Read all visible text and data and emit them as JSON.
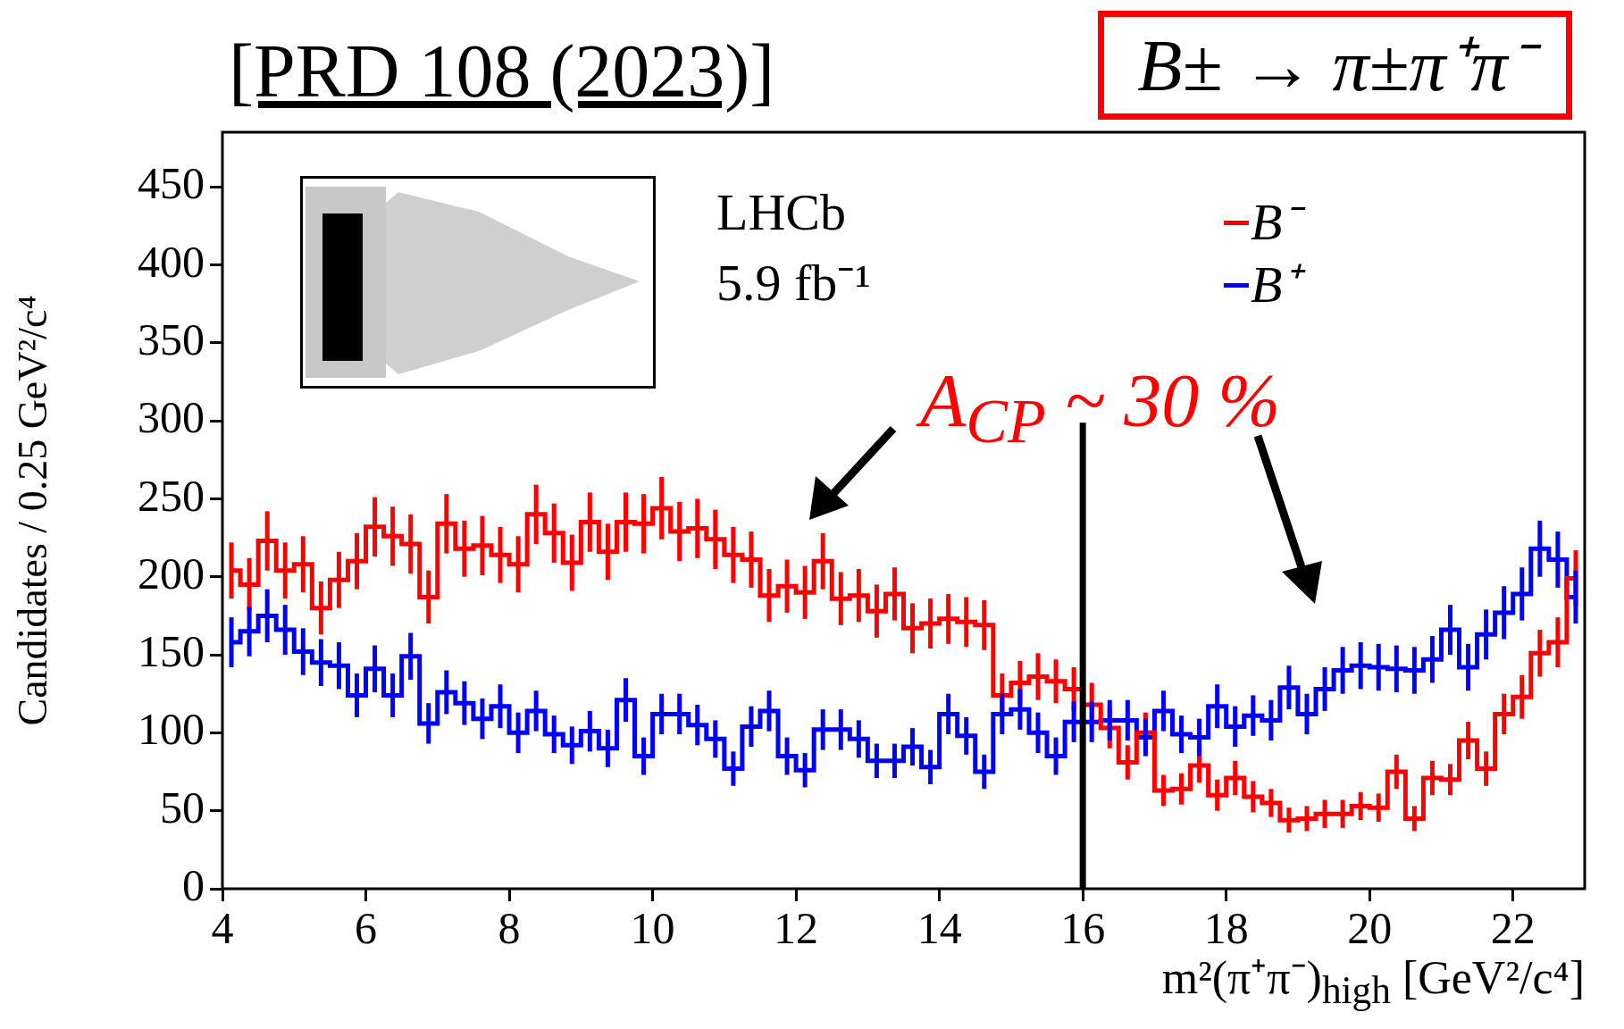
{
  "chart_data": {
    "type": "step",
    "title": "[PRD 108 (2023)]",
    "xlabel": "m²(π⁺π⁻)$_{high}$ [GeV²/c⁴]",
    "ylabel": "Candidates / 0.25 GeV²/c⁴",
    "x": [
      4.125,
      4.375,
      4.625,
      4.875,
      5.125,
      5.375,
      5.625,
      5.875,
      6.125,
      6.375,
      6.625,
      6.875,
      7.125,
      7.375,
      7.625,
      7.875,
      8.125,
      8.375,
      8.625,
      8.875,
      9.125,
      9.375,
      9.625,
      9.875,
      10.125,
      10.375,
      10.625,
      10.875,
      11.125,
      11.375,
      11.625,
      11.875,
      12.125,
      12.375,
      12.625,
      12.875,
      13.125,
      13.375,
      13.625,
      13.875,
      14.125,
      14.375,
      14.625,
      14.875,
      15.125,
      15.375,
      15.625,
      15.875,
      16.125,
      16.375,
      16.625,
      16.875,
      17.125,
      17.375,
      17.625,
      17.875,
      18.125,
      18.375,
      18.625,
      18.875,
      19.125,
      19.375,
      19.625,
      19.875,
      20.125,
      20.375,
      20.625,
      20.875,
      21.125,
      21.375,
      21.625,
      21.875,
      22.125,
      22.375,
      22.625,
      22.875
    ],
    "series": [
      {
        "name": "B⁻",
        "color": "#ff0000",
        "values": [
          204,
          195,
          223,
          204,
          208,
          180,
          198,
          210,
          232,
          226,
          221,
          187,
          234,
          218,
          220,
          214,
          208,
          240,
          228,
          209,
          235,
          216,
          235,
          234,
          244,
          229,
          231,
          224,
          214,
          211,
          188,
          194,
          190,
          210,
          186,
          188,
          178,
          189,
          167,
          170,
          173,
          171,
          169,
          124,
          132,
          136,
          133,
          128,
          118,
          103,
          81,
          100,
          63,
          64,
          79,
          60,
          71,
          59,
          55,
          44,
          45,
          48,
          48,
          53,
          52,
          75,
          45,
          71,
          70,
          95,
          77,
          112,
          123,
          151,
          158,
          199
        ],
        "errors": [
          18,
          17,
          19,
          18,
          18,
          17,
          18,
          18,
          19,
          19,
          19,
          17,
          19,
          18,
          19,
          18,
          18,
          19,
          19,
          18,
          19,
          18,
          19,
          19,
          20,
          19,
          19,
          19,
          18,
          18,
          17,
          17,
          17,
          18,
          17,
          17,
          17,
          17,
          16,
          16,
          16,
          16,
          16,
          14,
          14,
          15,
          14,
          14,
          14,
          13,
          11,
          13,
          10,
          10,
          11,
          10,
          11,
          10,
          9,
          8,
          8,
          9,
          9,
          9,
          9,
          11,
          8,
          11,
          10,
          12,
          11,
          13,
          14,
          15,
          16,
          18
        ]
      },
      {
        "name": "B⁺",
        "color": "#0000ff",
        "values": [
          158,
          165,
          175,
          166,
          152,
          145,
          143,
          124,
          141,
          124,
          149,
          106,
          126,
          119,
          109,
          117,
          100,
          114,
          99,
          92,
          101,
          90,
          121,
          85,
          112,
          112,
          105,
          96,
          77,
          104,
          114,
          85,
          76,
          102,
          102,
          96,
          82,
          82,
          91,
          78,
          112,
          98,
          75,
          112,
          115,
          100,
          85,
          107,
          107,
          108,
          108,
          97,
          114,
          99,
          97,
          117,
          104,
          111,
          108,
          129,
          112,
          128,
          140,
          143,
          142,
          141,
          140,
          147,
          166,
          142,
          163,
          177,
          189,
          218,
          211,
          187
        ],
        "errors": [
          16,
          16,
          17,
          16,
          15,
          15,
          15,
          14,
          15,
          14,
          15,
          13,
          14,
          14,
          13,
          14,
          13,
          13,
          12,
          12,
          13,
          12,
          14,
          12,
          13,
          13,
          13,
          12,
          11,
          13,
          13,
          12,
          11,
          13,
          13,
          12,
          11,
          11,
          12,
          11,
          13,
          12,
          11,
          13,
          13,
          13,
          12,
          13,
          13,
          13,
          13,
          12,
          13,
          12,
          12,
          14,
          13,
          13,
          13,
          14,
          13,
          14,
          15,
          15,
          15,
          15,
          15,
          15,
          16,
          15,
          16,
          17,
          17,
          18,
          18,
          17
        ]
      }
    ],
    "xlim": [
      4,
      23
    ],
    "xticks": [
      4,
      6,
      8,
      10,
      12,
      14,
      16,
      18,
      20,
      22
    ],
    "ylim": [
      0,
      485
    ],
    "yticks": [
      0,
      50,
      100,
      150,
      200,
      250,
      300,
      350,
      400,
      450
    ],
    "ref_lines": [
      {
        "axis": "x",
        "value": 16,
        "color": "#000000"
      }
    ],
    "annotations": [
      "B± → π±π⁺π⁻",
      "LHCb",
      "5.9 fb⁻¹",
      "A$_{CP}$ ~ 30 %"
    ],
    "legend": "top right",
    "grid": false,
    "marker": "none"
  }
}
